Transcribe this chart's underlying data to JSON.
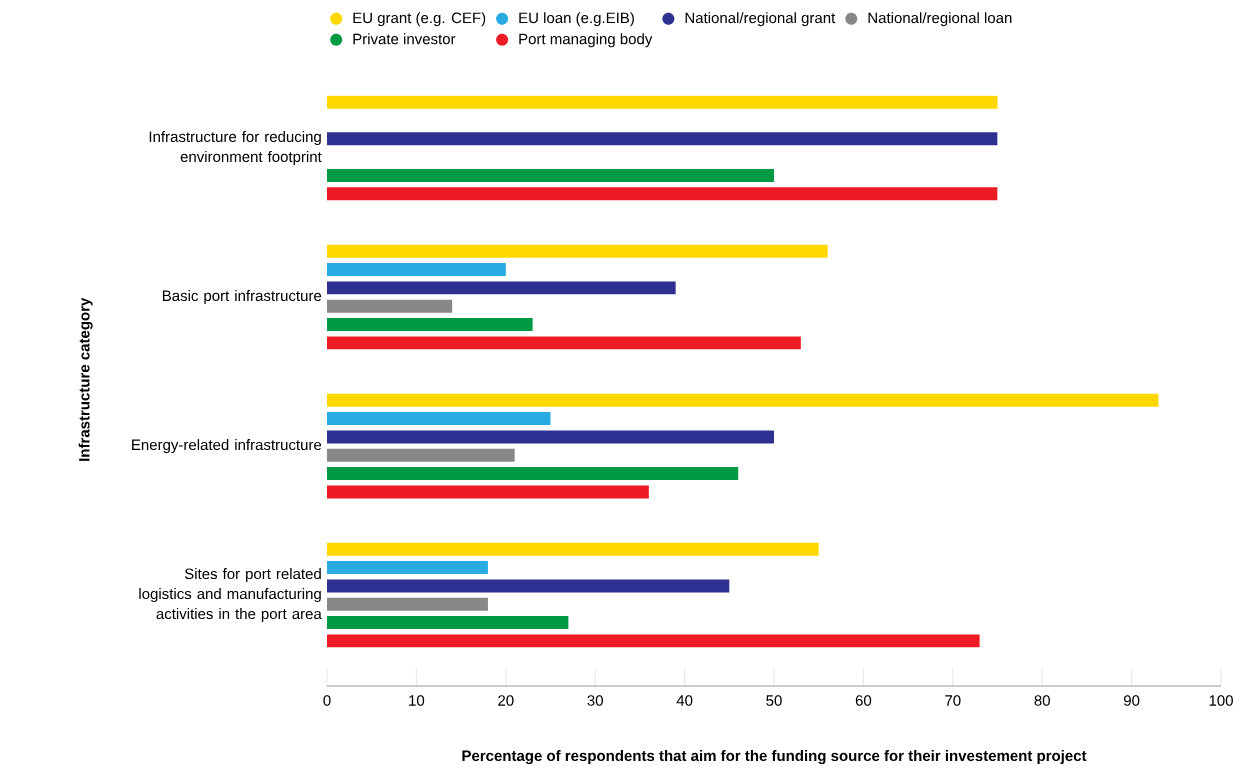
{
  "chart_data": {
    "type": "bar",
    "orientation": "horizontal",
    "categories": [
      "Infrastructure for reducing environment footprint",
      "Basic port infrastructure",
      "Energy-related infrastructure",
      "Sites for port related logistics and manufacturing activities in the port area"
    ],
    "series": [
      {
        "name": "EU grant (e.g. CEF)",
        "color": "#ffd800",
        "values": [
          75,
          56,
          93,
          55
        ]
      },
      {
        "name": "EU loan (e.g.EIB)",
        "color": "#29abe2",
        "values": [
          null,
          20,
          25,
          18
        ]
      },
      {
        "name": "National/regional grant",
        "color": "#2e3192",
        "values": [
          75,
          39,
          50,
          45
        ]
      },
      {
        "name": "National/regional loan",
        "color": "#888888",
        "values": [
          null,
          14,
          21,
          18
        ]
      },
      {
        "name": "Private investor",
        "color": "#009a44",
        "values": [
          50,
          23,
          46,
          27
        ]
      },
      {
        "name": "Port managing body",
        "color": "#ed1c24",
        "values": [
          75,
          53,
          36,
          73
        ]
      }
    ],
    "xlabel": "Percentage of respondents that aim for the funding source for their investement project",
    "ylabel": "Infrastructure category",
    "xlim": [
      0,
      100
    ],
    "xticks": [
      0,
      10,
      20,
      30,
      40,
      50,
      60,
      70,
      80,
      90,
      100
    ],
    "legend": "top",
    "marker": "circle"
  }
}
